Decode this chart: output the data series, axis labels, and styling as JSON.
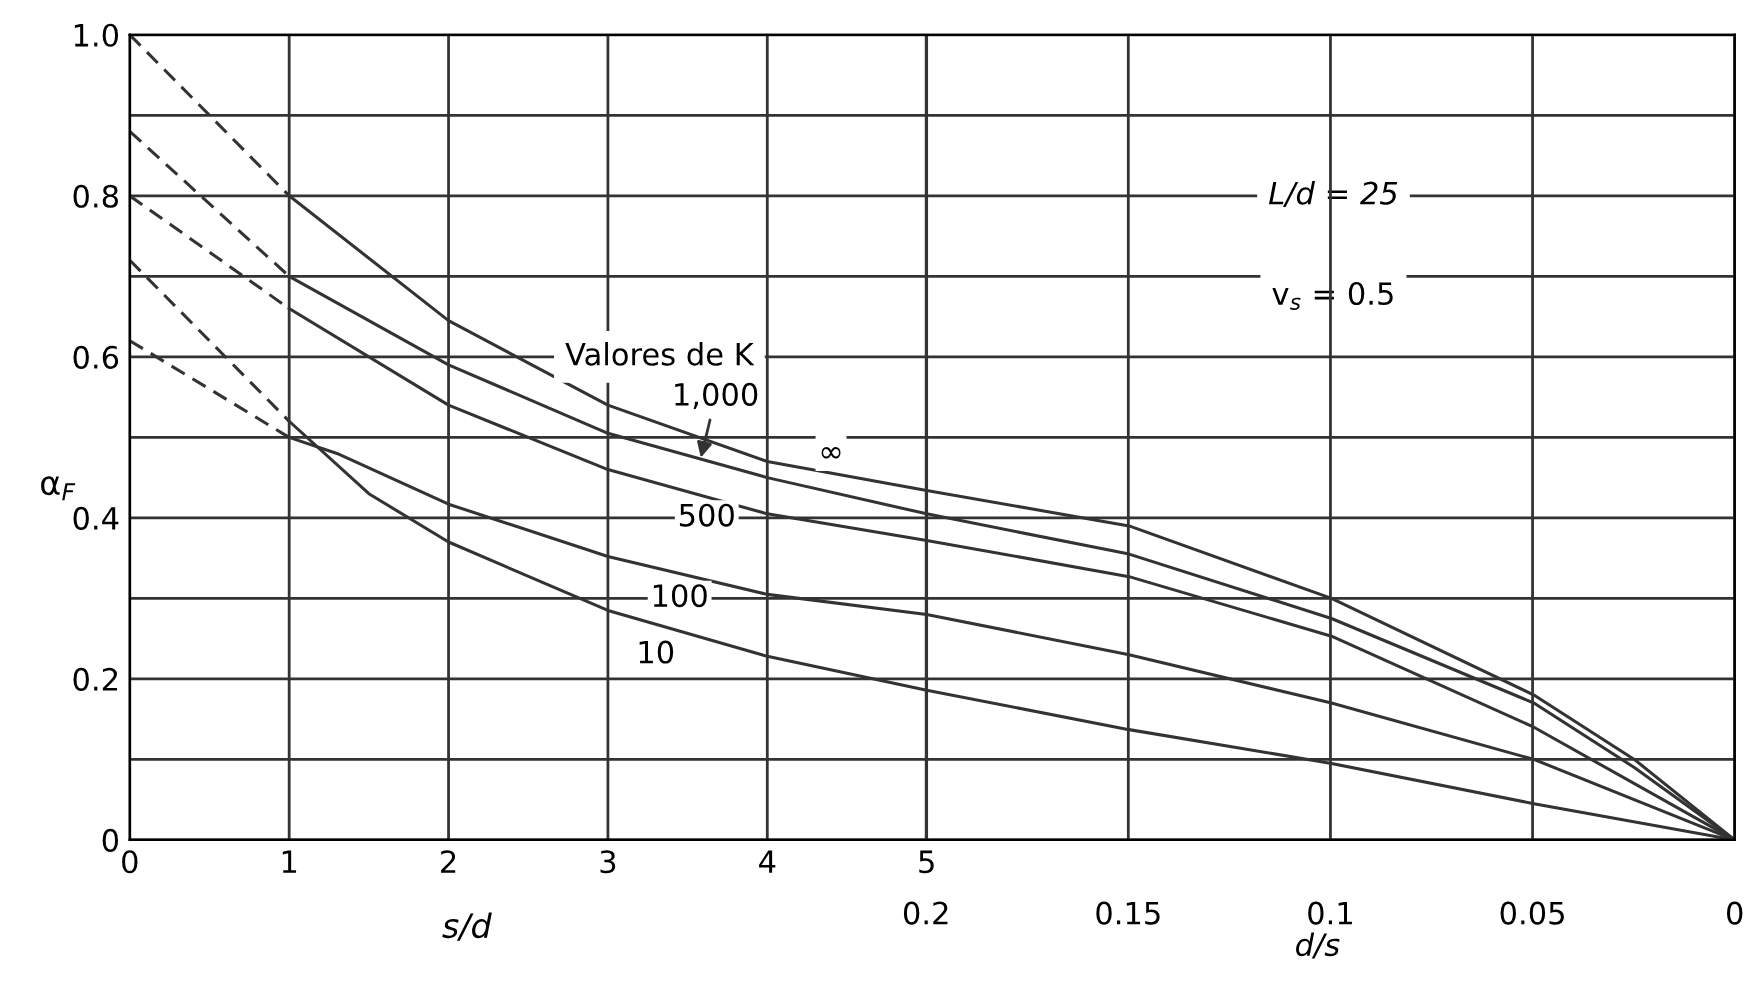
{
  "chart_data": {
    "type": "line",
    "xlabel": "s/d",
    "x2label": "d/s",
    "ylabel": "α$_{F}$",
    "xlim": [
      0,
      10.07
    ],
    "xticks": [
      0,
      1,
      2,
      3,
      4,
      5
    ],
    "x2lim": [
      0.397,
      0
    ],
    "x2ticks": [
      0.2,
      0.15,
      0.1,
      0.05,
      0
    ],
    "ylim": [
      0,
      1.0
    ],
    "yticks": [
      0,
      {
        "value": 0.1,
        "label": null
      },
      0.2,
      {
        "value": 0.3,
        "label": null
      },
      0.4,
      {
        "value": 0.5,
        "label": null
      },
      0.6,
      {
        "value": 0.7,
        "label": null
      },
      0.8,
      {
        "value": 0.9,
        "label": null
      },
      {
        "value": 1.0,
        "label": "1.0"
      }
    ],
    "grid": true,
    "legend": false,
    "marker": "none",
    "series": [
      {
        "color": "#333333",
        "line_style": "dashed",
        "x": [
          0,
          1
        ],
        "values": [
          1.0,
          0.8
        ]
      },
      {
        "color": "#333333",
        "line_style": "dashed",
        "x": [
          0,
          1
        ],
        "values": [
          0.88,
          0.7
        ]
      },
      {
        "color": "#333333",
        "line_style": "dashed",
        "x": [
          0,
          1
        ],
        "values": [
          0.8,
          0.66
        ]
      },
      {
        "color": "#333333",
        "line_style": "dashed",
        "x": [
          0,
          1
        ],
        "values": [
          0.72,
          0.52
        ]
      },
      {
        "color": "#333333",
        "line_style": "dashed",
        "x": [
          0,
          1
        ],
        "values": [
          0.62,
          0.5
        ]
      },
      {
        "color": "#333333",
        "line_style": "solid",
        "x": [
          1,
          2,
          3,
          4,
          5,
          6.27,
          7.54,
          8.81,
          9.44,
          10.07
        ],
        "values": [
          0.8,
          0.645,
          0.54,
          0.47,
          0.434,
          0.39,
          0.3,
          0.18,
          0.1,
          0
        ]
      },
      {
        "color": "#333333",
        "line_style": "solid",
        "x": [
          1,
          2,
          3,
          4,
          5,
          6.27,
          7.54,
          8.81,
          9.44,
          10.07
        ],
        "values": [
          0.7,
          0.59,
          0.505,
          0.45,
          0.405,
          0.355,
          0.275,
          0.17,
          0.09,
          0
        ]
      },
      {
        "color": "#333333",
        "line_style": "solid",
        "x": [
          1,
          2,
          3,
          4,
          5,
          6.27,
          7.54,
          8.81,
          10.07
        ],
        "values": [
          0.66,
          0.54,
          0.46,
          0.405,
          0.372,
          0.327,
          0.253,
          0.14,
          0
        ]
      },
      {
        "color": "#333333",
        "line_style": "solid",
        "x": [
          1,
          1.3,
          2,
          3,
          4,
          5,
          6.27,
          7.54,
          8.81,
          10.07
        ],
        "values": [
          0.5,
          0.48,
          0.417,
          0.352,
          0.305,
          0.28,
          0.23,
          0.17,
          0.1,
          0
        ]
      },
      {
        "color": "#333333",
        "line_style": "solid",
        "x": [
          1,
          1.5,
          2,
          3,
          4,
          5,
          6.27,
          7.54,
          8.81,
          10.07
        ],
        "values": [
          0.52,
          0.43,
          0.37,
          0.285,
          0.228,
          0.186,
          0.137,
          0.095,
          0.045,
          0
        ]
      }
    ],
    "annotations": [
      "L/d = 25",
      "v$_{s}$ = 0.5",
      "Valores de K",
      "1,000",
      {
        "text": "∞",
        "x": 4.4,
        "y": 0.48
      },
      {
        "text": "500",
        "x": 3.62,
        "y": 0.4
      },
      {
        "text": "100",
        "x": 3.45,
        "y": 0.3
      },
      {
        "text": "10",
        "x": 3.3,
        "y": 0.23
      }
    ]
  }
}
